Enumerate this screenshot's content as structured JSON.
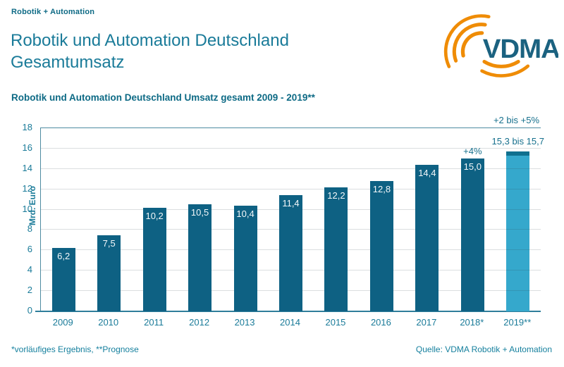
{
  "header": {
    "eyebrow": "Robotik + Automation",
    "title_line1": "Robotik und Automation Deutschland",
    "title_line2": "Gesamtumsatz"
  },
  "logo": {
    "text": "VDMA",
    "text_color": "#1b6280",
    "arc_color": "#ef8c06"
  },
  "chart_data": {
    "type": "bar",
    "title": "Robotik und Automation Deutschland Umsatz gesamt 2009 - 2019**",
    "ylabel": "Mrd. Euro",
    "ylim": [
      0,
      18
    ],
    "ytick_step": 2,
    "grid": true,
    "categories": [
      "2009",
      "2010",
      "2011",
      "2012",
      "2013",
      "2014",
      "2015",
      "2016",
      "2017",
      "2018*",
      "2019**"
    ],
    "values": [
      6.2,
      7.5,
      10.2,
      10.5,
      10.4,
      11.4,
      12.2,
      12.8,
      14.4,
      15.0,
      null
    ],
    "value_labels": [
      "6,2",
      "7,5",
      "10,2",
      "10,5",
      "10,4",
      "11,4",
      "12,2",
      "12,8",
      "14,4",
      "15,0",
      ""
    ],
    "bar_color": "#0e6183",
    "forecast": {
      "category": "2019**",
      "range": [
        15.3,
        15.7
      ],
      "range_label": "15,3 bis 15,7",
      "growth_label": "+2 bis +5%",
      "bar_color": "#35a8cc",
      "cap_color": "#10708f"
    },
    "annotations": [
      {
        "category": "2018*",
        "label": "+4%"
      }
    ]
  },
  "footer": {
    "left": "*vorläufiges Ergebnis, **Prognose",
    "right": "Quelle: VDMA Robotik + Automation"
  }
}
